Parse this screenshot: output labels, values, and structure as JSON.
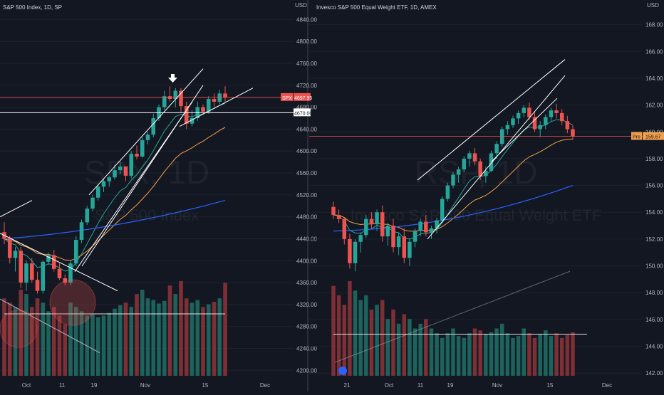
{
  "colors": {
    "background": "#131722",
    "up": "#26a69a",
    "down": "#ef5350",
    "grid": "#1e222d",
    "axis_text": "#b2b5be",
    "ema_fast": "#26a69a",
    "ema_mid": "#f0a04b",
    "ema_slow": "#2962ff",
    "volume_up": "#1f6b63",
    "volume_down": "#8a3238",
    "price_line": "#ef5350",
    "white_line": "#ffffff"
  },
  "chart_data": [
    {
      "type": "candlestick",
      "title": "S&P 500 Index, 1D, SP",
      "watermark_symbol": "SPX, 1D",
      "watermark_name": "S&P 500 Index",
      "currency": "USD",
      "ylim": [
        4190,
        4860
      ],
      "yticks": [
        "4840.00",
        "4800.00",
        "4760.00",
        "4720.00",
        "4680.00",
        "4640.00",
        "4600.00",
        "4560.00",
        "4520.00",
        "4480.00",
        "4440.00",
        "4400.00",
        "4360.00",
        "4320.00",
        "4280.00",
        "4240.00",
        "4200.00"
      ],
      "xticks": [
        "Oct",
        "11",
        "19",
        "Nov",
        "15",
        "Dec"
      ],
      "last_price_label": "SPX",
      "last_price": "4697.95",
      "horizontal_line_label": "4670.00",
      "horizontal_line_value": 4670,
      "candles": [
        [
          4452,
          4470,
          4430,
          4440
        ],
        [
          4440,
          4445,
          4395,
          4405
        ],
        [
          4405,
          4425,
          4380,
          4418
        ],
        [
          4418,
          4425,
          4350,
          4360
        ],
        [
          4360,
          4400,
          4345,
          4395
        ],
        [
          4395,
          4405,
          4360,
          4365
        ],
        [
          4365,
          4380,
          4340,
          4345
        ],
        [
          4345,
          4400,
          4340,
          4398
        ],
        [
          4398,
          4415,
          4392,
          4410
        ],
        [
          4410,
          4420,
          4380,
          4385
        ],
        [
          4385,
          4395,
          4365,
          4368
        ],
        [
          4368,
          4375,
          4355,
          4360
        ],
        [
          4360,
          4400,
          4355,
          4395
        ],
        [
          4395,
          4445,
          4390,
          4438
        ],
        [
          4438,
          4475,
          4432,
          4470
        ],
        [
          4470,
          4500,
          4465,
          4495
        ],
        [
          4495,
          4520,
          4490,
          4515
        ],
        [
          4515,
          4540,
          4510,
          4535
        ],
        [
          4535,
          4550,
          4525,
          4545
        ],
        [
          4545,
          4555,
          4535,
          4552
        ],
        [
          4552,
          4575,
          4548,
          4565
        ],
        [
          4565,
          4580,
          4558,
          4572
        ],
        [
          4572,
          4570,
          4545,
          4555
        ],
        [
          4555,
          4600,
          4550,
          4595
        ],
        [
          4595,
          4610,
          4585,
          4590
        ],
        [
          4590,
          4625,
          4588,
          4620
        ],
        [
          4620,
          4635,
          4612,
          4630
        ],
        [
          4630,
          4668,
          4625,
          4660
        ],
        [
          4660,
          4685,
          4655,
          4680
        ],
        [
          4680,
          4710,
          4675,
          4700
        ],
        [
          4700,
          4718,
          4690,
          4695
        ],
        [
          4695,
          4715,
          4680,
          4710
        ],
        [
          4710,
          4715,
          4670,
          4682
        ],
        [
          4682,
          4690,
          4640,
          4650
        ],
        [
          4650,
          4675,
          4645,
          4660
        ],
        [
          4660,
          4690,
          4655,
          4680
        ],
        [
          4680,
          4685,
          4668,
          4672
        ],
        [
          4672,
          4700,
          4668,
          4695
        ],
        [
          4695,
          4705,
          4680,
          4690
        ],
        [
          4690,
          4712,
          4686,
          4705
        ],
        [
          4705,
          4718,
          4690,
          4697.95
        ]
      ],
      "volume_relative": [
        0.9,
        0.85,
        0.8,
        1.0,
        0.95,
        0.8,
        0.9,
        0.85,
        0.75,
        0.8,
        0.7,
        0.6,
        0.85,
        0.8,
        0.75,
        0.7,
        0.72,
        0.68,
        0.7,
        0.73,
        0.78,
        0.82,
        0.85,
        0.8,
        0.95,
        1.0,
        0.9,
        0.88,
        0.84,
        0.87,
        1.05,
        0.95,
        1.1,
        0.9,
        0.85,
        0.88,
        0.8,
        0.83,
        0.86,
        0.9,
        1.08
      ]
    },
    {
      "type": "candlestick",
      "title": "Invesco S&P 500 Equal Weight ETF, 1D, AMEX",
      "watermark_symbol": "RSP, 1D",
      "watermark_name": "Invesco S&P 500 Equal Weight ETF",
      "currency": "USD",
      "ylim": [
        141.8,
        169.2
      ],
      "yticks": [
        "168.00",
        "166.00",
        "164.00",
        "162.00",
        "160.00",
        "158.00",
        "156.00",
        "154.00",
        "152.00",
        "150.00",
        "148.00",
        "146.00",
        "144.00",
        "142.00"
      ],
      "xticks": [
        "21",
        "Oct",
        "11",
        "19",
        "Nov",
        "15",
        "Dec"
      ],
      "last_price_label": "Pre",
      "pre_price": "159.67",
      "last_price": "159.66",
      "candles": [
        [
          154.4,
          154.8,
          153.5,
          153.8
        ],
        [
          153.8,
          154.2,
          153.2,
          153.5
        ],
        [
          153.5,
          153.6,
          151.6,
          152.0
        ],
        [
          152.0,
          152.4,
          149.8,
          150.2
        ],
        [
          150.2,
          152.0,
          149.6,
          151.8
        ],
        [
          151.8,
          152.5,
          151.0,
          152.3
        ],
        [
          152.3,
          153.8,
          152.1,
          153.5
        ],
        [
          153.5,
          154.0,
          152.8,
          153.1
        ],
        [
          153.1,
          154.2,
          152.6,
          154.0
        ],
        [
          154.0,
          154.5,
          151.8,
          152.2
        ],
        [
          152.2,
          153.2,
          151.5,
          153.0
        ],
        [
          153.0,
          153.5,
          151.0,
          151.4
        ],
        [
          151.4,
          152.5,
          150.8,
          152.2
        ],
        [
          152.2,
          152.8,
          150.2,
          150.6
        ],
        [
          150.6,
          152.0,
          150.0,
          151.8
        ],
        [
          151.8,
          152.8,
          151.4,
          152.6
        ],
        [
          152.6,
          153.5,
          152.2,
          153.3
        ],
        [
          153.3,
          153.8,
          152.2,
          152.5
        ],
        [
          152.5,
          153.0,
          152.0,
          152.8
        ],
        [
          152.8,
          153.6,
          152.4,
          153.4
        ],
        [
          153.4,
          155.2,
          153.2,
          155.0
        ],
        [
          155.0,
          156.2,
          154.8,
          156.0
        ],
        [
          156.0,
          157.0,
          155.8,
          156.8
        ],
        [
          156.8,
          157.4,
          156.2,
          157.2
        ],
        [
          157.2,
          158.2,
          157.0,
          158.0
        ],
        [
          158.0,
          158.6,
          157.4,
          158.4
        ],
        [
          158.4,
          158.8,
          157.5,
          157.8
        ],
        [
          157.8,
          158.0,
          156.4,
          156.7
        ],
        [
          156.7,
          157.4,
          156.2,
          157.1
        ],
        [
          157.1,
          158.6,
          157.0,
          158.4
        ],
        [
          158.4,
          159.3,
          158.0,
          159.1
        ],
        [
          159.1,
          160.4,
          158.9,
          160.2
        ],
        [
          160.2,
          160.8,
          159.8,
          160.5
        ],
        [
          160.5,
          161.2,
          160.3,
          161.0
        ],
        [
          161.0,
          161.6,
          160.6,
          161.4
        ],
        [
          161.4,
          162.0,
          161.1,
          161.8
        ],
        [
          161.8,
          162.2,
          160.9,
          161.1
        ],
        [
          161.1,
          161.5,
          160.0,
          160.2
        ],
        [
          160.2,
          160.8,
          159.6,
          160.5
        ],
        [
          160.5,
          161.3,
          160.2,
          161.1
        ],
        [
          161.1,
          161.8,
          160.8,
          161.6
        ],
        [
          161.6,
          162.1,
          161.0,
          161.4
        ],
        [
          161.4,
          161.7,
          160.5,
          160.8
        ],
        [
          160.8,
          161.2,
          159.9,
          160.2
        ],
        [
          160.2,
          160.5,
          159.4,
          159.66
        ]
      ],
      "volume_relative": [
        0.95,
        0.85,
        0.75,
        1.0,
        0.9,
        0.8,
        0.85,
        0.7,
        0.75,
        0.8,
        0.6,
        0.7,
        0.55,
        0.65,
        0.6,
        0.5,
        0.55,
        0.6,
        0.5,
        0.45,
        0.4,
        0.45,
        0.5,
        0.42,
        0.4,
        0.45,
        0.5,
        0.48,
        0.44,
        0.46,
        0.5,
        0.55,
        0.45,
        0.4,
        0.42,
        0.5,
        0.45,
        0.4,
        0.44,
        0.48,
        0.42,
        0.45,
        0.4,
        0.43,
        0.46
      ]
    }
  ]
}
